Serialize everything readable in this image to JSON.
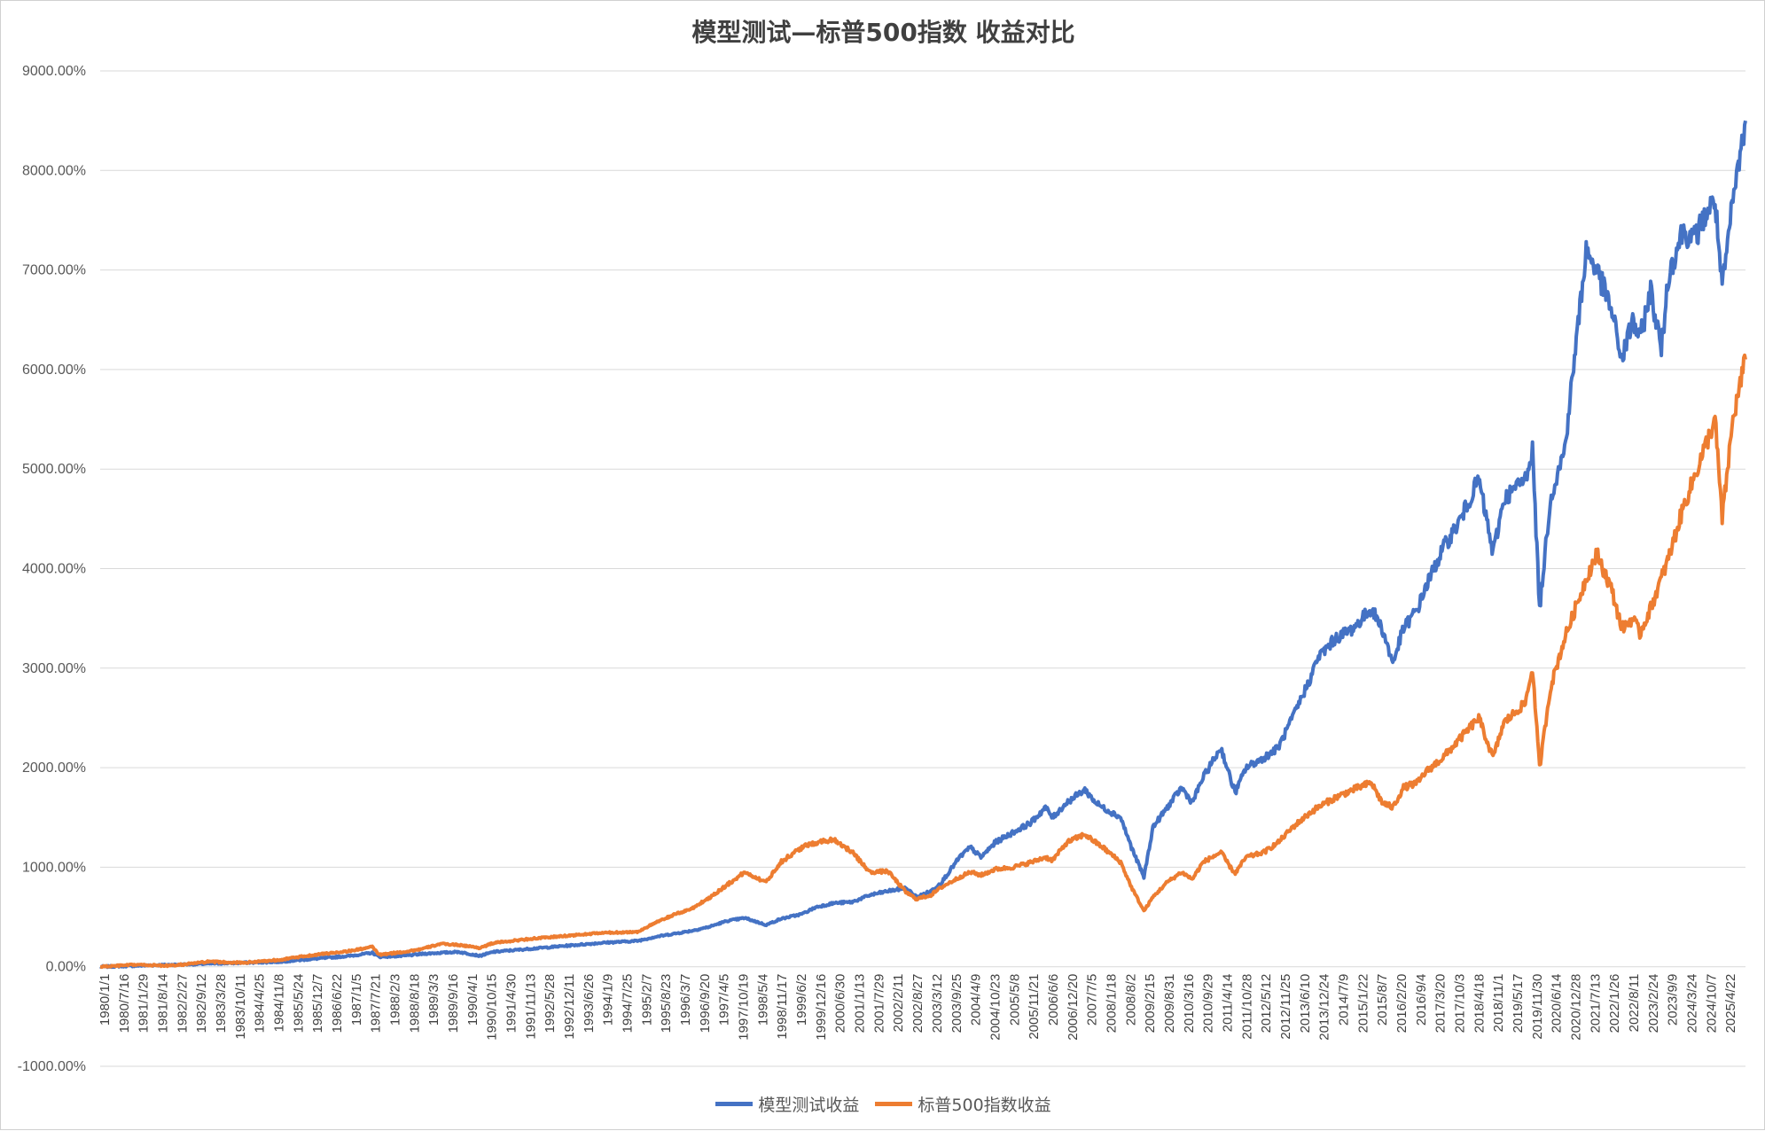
{
  "chart_data": {
    "type": "line",
    "title": "模型测试—标普500指数 收益对比",
    "ylim": [
      -1000,
      9000
    ],
    "y_ticks": [
      "9000.00%",
      "8000.00%",
      "7000.00%",
      "6000.00%",
      "5000.00%",
      "4000.00%",
      "3000.00%",
      "2000.00%",
      "1000.00%",
      "0.00%",
      "-1000.00%"
    ],
    "y_tick_values": [
      9000,
      8000,
      7000,
      6000,
      5000,
      4000,
      3000,
      2000,
      1000,
      0,
      -1000
    ],
    "x_ticks": [
      "1980/1/1",
      "1980/7/16",
      "1981/1/29",
      "1981/8/14",
      "1982/2/27",
      "1982/9/12",
      "1983/3/28",
      "1983/10/11",
      "1984/4/25",
      "1984/11/8",
      "1985/5/24",
      "1985/12/7",
      "1986/6/22",
      "1987/1/5",
      "1987/7/21",
      "1988/2/3",
      "1988/8/18",
      "1989/3/3",
      "1989/9/16",
      "1990/4/1",
      "1990/10/15",
      "1991/4/30",
      "1991/11/13",
      "1992/5/28",
      "1992/12/11",
      "1993/6/26",
      "1994/1/9",
      "1994/7/25",
      "1995/2/7",
      "1995/8/23",
      "1996/3/7",
      "1996/9/20",
      "1997/4/5",
      "1997/10/19",
      "1998/5/4",
      "1998/11/17",
      "1999/6/2",
      "1999/12/16",
      "2000/6/30",
      "2001/1/13",
      "2001/7/29",
      "2002/2/11",
      "2002/8/27",
      "2003/3/12",
      "2003/9/25",
      "2004/4/9",
      "2004/10/23",
      "2005/5/8",
      "2005/11/21",
      "2006/6/6",
      "2006/12/20",
      "2007/7/5",
      "2008/1/18",
      "2008/8/2",
      "2009/2/15",
      "2009/8/31",
      "2010/3/16",
      "2010/9/29",
      "2011/4/14",
      "2011/10/28",
      "2012/5/12",
      "2012/11/25",
      "2013/6/10",
      "2013/12/24",
      "2014/7/9",
      "2015/1/22",
      "2015/8/7",
      "2016/2/20",
      "2016/9/4",
      "2017/3/20",
      "2017/10/3",
      "2018/4/18",
      "2018/11/1",
      "2019/5/17",
      "2019/11/30",
      "2020/6/14",
      "2020/12/28",
      "2021/7/13",
      "2022/1/26",
      "2022/8/11",
      "2023/2/24",
      "2023/9/9",
      "2024/3/24",
      "2024/10/7",
      "2025/4/22"
    ],
    "x_range": [
      1980.0,
      2025.95
    ],
    "series": [
      {
        "name": "模型测试收益",
        "color": "#4472C4",
        "points": [
          [
            1980.0,
            0
          ],
          [
            1981.0,
            10
          ],
          [
            1982.0,
            20
          ],
          [
            1983.0,
            30
          ],
          [
            1984.0,
            40
          ],
          [
            1985.0,
            50
          ],
          [
            1986.0,
            80
          ],
          [
            1987.0,
            110
          ],
          [
            1987.6,
            140
          ],
          [
            1987.8,
            100
          ],
          [
            1988.5,
            110
          ],
          [
            1989.0,
            130
          ],
          [
            1989.5,
            140
          ],
          [
            1990.0,
            150
          ],
          [
            1990.6,
            110
          ],
          [
            1991.0,
            150
          ],
          [
            1992.0,
            180
          ],
          [
            1993.0,
            210
          ],
          [
            1994.0,
            240
          ],
          [
            1995.0,
            260
          ],
          [
            1995.5,
            300
          ],
          [
            1996.0,
            330
          ],
          [
            1996.5,
            360
          ],
          [
            1997.0,
            400
          ],
          [
            1997.5,
            460
          ],
          [
            1998.0,
            490
          ],
          [
            1998.6,
            420
          ],
          [
            1999.0,
            480
          ],
          [
            1999.6,
            530
          ],
          [
            2000.0,
            600
          ],
          [
            2000.5,
            640
          ],
          [
            2001.0,
            650
          ],
          [
            2001.5,
            720
          ],
          [
            2002.0,
            760
          ],
          [
            2002.5,
            790
          ],
          [
            2002.8,
            700
          ],
          [
            2003.2,
            760
          ],
          [
            2003.5,
            850
          ],
          [
            2004.0,
            1100
          ],
          [
            2004.3,
            1200
          ],
          [
            2004.6,
            1100
          ],
          [
            2005.0,
            1250
          ],
          [
            2005.5,
            1350
          ],
          [
            2006.0,
            1450
          ],
          [
            2006.4,
            1600
          ],
          [
            2006.6,
            1500
          ],
          [
            2007.0,
            1650
          ],
          [
            2007.5,
            1780
          ],
          [
            2007.8,
            1650
          ],
          [
            2008.0,
            1600
          ],
          [
            2008.5,
            1500
          ],
          [
            2008.8,
            1200
          ],
          [
            2009.15,
            900
          ],
          [
            2009.4,
            1400
          ],
          [
            2009.8,
            1600
          ],
          [
            2010.2,
            1800
          ],
          [
            2010.5,
            1650
          ],
          [
            2010.8,
            1900
          ],
          [
            2011.3,
            2200
          ],
          [
            2011.6,
            1850
          ],
          [
            2011.7,
            1750
          ],
          [
            2012.0,
            2000
          ],
          [
            2012.5,
            2100
          ],
          [
            2012.9,
            2200
          ],
          [
            2013.3,
            2500
          ],
          [
            2013.8,
            2900
          ],
          [
            2014.0,
            3100
          ],
          [
            2014.5,
            3300
          ],
          [
            2015.0,
            3400
          ],
          [
            2015.5,
            3600
          ],
          [
            2015.8,
            3400
          ],
          [
            2016.1,
            3050
          ],
          [
            2016.4,
            3400
          ],
          [
            2016.8,
            3600
          ],
          [
            2017.0,
            3800
          ],
          [
            2017.5,
            4200
          ],
          [
            2018.0,
            4500
          ],
          [
            2018.5,
            4900
          ],
          [
            2018.9,
            4150
          ],
          [
            2019.2,
            4700
          ],
          [
            2019.8,
            4900
          ],
          [
            2020.0,
            5200
          ],
          [
            2020.2,
            3600
          ],
          [
            2020.5,
            4700
          ],
          [
            2020.9,
            5200
          ],
          [
            2021.2,
            6200
          ],
          [
            2021.5,
            7200
          ],
          [
            2021.8,
            7000
          ],
          [
            2022.2,
            6600
          ],
          [
            2022.5,
            6100
          ],
          [
            2022.8,
            6500
          ],
          [
            2023.0,
            6300
          ],
          [
            2023.3,
            6800
          ],
          [
            2023.6,
            6200
          ],
          [
            2023.8,
            6950
          ],
          [
            2024.2,
            7400
          ],
          [
            2024.5,
            7300
          ],
          [
            2024.9,
            7600
          ],
          [
            2025.1,
            7700
          ],
          [
            2025.3,
            6800
          ],
          [
            2025.6,
            7700
          ],
          [
            2025.95,
            8500
          ]
        ]
      },
      {
        "name": "标普500指数收益",
        "color": "#ED7D31",
        "points": [
          [
            1980.0,
            0
          ],
          [
            1981.0,
            20
          ],
          [
            1982.0,
            10
          ],
          [
            1983.0,
            50
          ],
          [
            1984.0,
            40
          ],
          [
            1985.0,
            70
          ],
          [
            1986.0,
            120
          ],
          [
            1987.0,
            160
          ],
          [
            1987.6,
            200
          ],
          [
            1987.8,
            120
          ],
          [
            1988.5,
            150
          ],
          [
            1989.0,
            180
          ],
          [
            1989.5,
            230
          ],
          [
            1990.0,
            220
          ],
          [
            1990.6,
            190
          ],
          [
            1991.0,
            240
          ],
          [
            1992.0,
            280
          ],
          [
            1993.0,
            310
          ],
          [
            1994.0,
            340
          ],
          [
            1995.0,
            350
          ],
          [
            1995.5,
            440
          ],
          [
            1996.0,
            520
          ],
          [
            1996.5,
            580
          ],
          [
            1997.0,
            690
          ],
          [
            1997.5,
            820
          ],
          [
            1998.0,
            950
          ],
          [
            1998.6,
            850
          ],
          [
            1999.0,
            1050
          ],
          [
            1999.6,
            1200
          ],
          [
            2000.0,
            1250
          ],
          [
            2000.5,
            1280
          ],
          [
            2001.0,
            1150
          ],
          [
            2001.5,
            950
          ],
          [
            2002.0,
            960
          ],
          [
            2002.5,
            750
          ],
          [
            2002.8,
            680
          ],
          [
            2003.2,
            720
          ],
          [
            2003.5,
            800
          ],
          [
            2004.0,
            900
          ],
          [
            2004.3,
            950
          ],
          [
            2004.6,
            920
          ],
          [
            2005.0,
            980
          ],
          [
            2005.5,
            1000
          ],
          [
            2006.0,
            1050
          ],
          [
            2006.4,
            1100
          ],
          [
            2006.6,
            1070
          ],
          [
            2007.0,
            1250
          ],
          [
            2007.5,
            1330
          ],
          [
            2007.8,
            1250
          ],
          [
            2008.0,
            1200
          ],
          [
            2008.5,
            1050
          ],
          [
            2008.8,
            800
          ],
          [
            2009.15,
            560
          ],
          [
            2009.4,
            700
          ],
          [
            2009.8,
            850
          ],
          [
            2010.2,
            950
          ],
          [
            2010.5,
            880
          ],
          [
            2010.8,
            1050
          ],
          [
            2011.3,
            1150
          ],
          [
            2011.6,
            980
          ],
          [
            2011.7,
            940
          ],
          [
            2012.0,
            1100
          ],
          [
            2012.5,
            1150
          ],
          [
            2012.9,
            1250
          ],
          [
            2013.3,
            1400
          ],
          [
            2013.8,
            1550
          ],
          [
            2014.0,
            1600
          ],
          [
            2014.5,
            1700
          ],
          [
            2015.0,
            1780
          ],
          [
            2015.5,
            1850
          ],
          [
            2015.8,
            1650
          ],
          [
            2016.1,
            1600
          ],
          [
            2016.4,
            1800
          ],
          [
            2016.8,
            1850
          ],
          [
            2017.0,
            1950
          ],
          [
            2017.5,
            2100
          ],
          [
            2018.0,
            2300
          ],
          [
            2018.5,
            2500
          ],
          [
            2018.9,
            2100
          ],
          [
            2019.2,
            2450
          ],
          [
            2019.8,
            2650
          ],
          [
            2020.0,
            3000
          ],
          [
            2020.2,
            2000
          ],
          [
            2020.5,
            2800
          ],
          [
            2020.9,
            3300
          ],
          [
            2021.2,
            3600
          ],
          [
            2021.5,
            3900
          ],
          [
            2021.8,
            4150
          ],
          [
            2022.2,
            3800
          ],
          [
            2022.5,
            3400
          ],
          [
            2022.8,
            3500
          ],
          [
            2023.0,
            3350
          ],
          [
            2023.3,
            3600
          ],
          [
            2023.6,
            3900
          ],
          [
            2023.8,
            4100
          ],
          [
            2024.2,
            4600
          ],
          [
            2024.5,
            4900
          ],
          [
            2024.9,
            5300
          ],
          [
            2025.1,
            5500
          ],
          [
            2025.3,
            4500
          ],
          [
            2025.6,
            5500
          ],
          [
            2025.95,
            6100
          ]
        ]
      }
    ],
    "legend_position": "bottom",
    "grid": true
  }
}
